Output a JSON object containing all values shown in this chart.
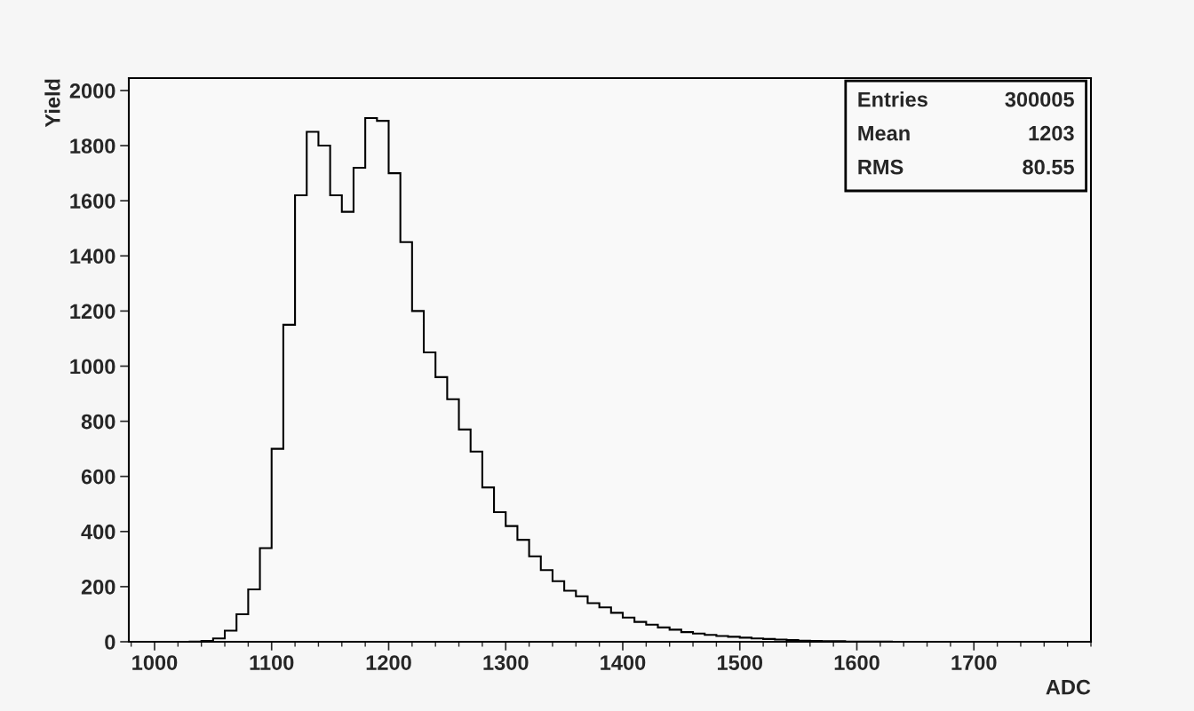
{
  "chart_data": {
    "type": "histogram",
    "xlabel": "ADC",
    "ylabel": "Yield",
    "bins": [
      980,
      990,
      1000,
      1010,
      1020,
      1030,
      1040,
      1050,
      1060,
      1070,
      1080,
      1090,
      1100,
      1110,
      1120,
      1130,
      1140,
      1150,
      1160,
      1170,
      1180,
      1190,
      1200,
      1210,
      1220,
      1230,
      1240,
      1250,
      1260,
      1270,
      1280,
      1290,
      1300,
      1310,
      1320,
      1330,
      1340,
      1350,
      1360,
      1370,
      1380,
      1390,
      1400,
      1410,
      1420,
      1430,
      1440,
      1450,
      1460,
      1470,
      1480,
      1490,
      1500,
      1510,
      1520,
      1530,
      1540,
      1550,
      1560,
      1570,
      1580,
      1590,
      1600,
      1610,
      1620,
      1630,
      1640,
      1650,
      1660,
      1670,
      1680,
      1690,
      1700,
      1710,
      1720,
      1730,
      1740,
      1750,
      1760,
      1770,
      1780,
      1790,
      1800
    ],
    "values": [
      0,
      0,
      0,
      0,
      0,
      1,
      3,
      12,
      40,
      100,
      190,
      340,
      700,
      1150,
      1620,
      1850,
      1800,
      1620,
      1560,
      1720,
      1900,
      1890,
      1700,
      1450,
      1200,
      1050,
      960,
      880,
      770,
      690,
      560,
      470,
      420,
      370,
      310,
      260,
      220,
      185,
      165,
      140,
      125,
      105,
      88,
      72,
      62,
      52,
      44,
      35,
      30,
      25,
      21,
      18,
      15,
      12,
      10,
      8,
      6,
      4,
      3,
      2,
      2,
      1,
      1,
      1,
      1,
      0,
      0,
      0,
      0,
      0,
      0,
      0,
      0,
      0,
      0,
      0,
      0,
      0,
      0,
      0,
      0,
      0
    ],
    "color": "#000000",
    "xlim": [
      978,
      1800
    ],
    "ylim": [
      0,
      2045
    ],
    "xticks": [
      1000,
      1100,
      1200,
      1300,
      1400,
      1500,
      1600,
      1700
    ],
    "yticks": [
      0,
      200,
      400,
      600,
      800,
      1000,
      1200,
      1400,
      1600,
      1800,
      2000
    ],
    "annotations": [
      "Entries 300005",
      "Mean 1203",
      "RMS 80.55"
    ],
    "grid": false,
    "legend": false
  }
}
